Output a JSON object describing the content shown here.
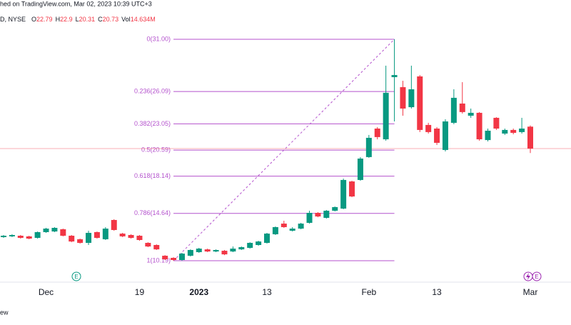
{
  "header": {
    "published": "hed on TradingView.com, Mar 02, 2023 10:39 UTC+3",
    "symbol": "D, NYSE",
    "ohlc": [
      {
        "label": "O",
        "value": 22.79
      },
      {
        "label": "H",
        "value": 22.9
      },
      {
        "label": "L",
        "value": 20.31
      },
      {
        "label": "C",
        "value": 20.73
      }
    ],
    "volume_label": "Vol",
    "volume": "14.634M"
  },
  "footer": "ew",
  "events": [
    "E",
    "E"
  ],
  "chart_data": {
    "type": "candlestick",
    "up_color": "#089981",
    "down_color": "#f23645",
    "ylim": [
      8.18,
      34.69
    ],
    "categories": [
      null,
      null,
      null,
      null,
      null,
      "Dec",
      null,
      null,
      null,
      null,
      null,
      null,
      null,
      null,
      null,
      null,
      "19",
      null,
      null,
      null,
      null,
      null,
      null,
      "2023",
      null,
      null,
      null,
      null,
      null,
      null,
      null,
      "13",
      null,
      null,
      null,
      null,
      null,
      null,
      null,
      null,
      null,
      null,
      null,
      "Feb",
      null,
      null,
      null,
      null,
      null,
      null,
      null,
      "13",
      null,
      null,
      null,
      null,
      null,
      null,
      null,
      null,
      null,
      null,
      "Mar"
    ],
    "open": [
      12.41,
      12.48,
      12.54,
      12.48,
      12.34,
      12.88,
      12.94,
      13.15,
      12.54,
      12.21,
      11.87,
      12.88,
      12.21,
      14.02,
      12.74,
      12.61,
      12.54,
      11.87,
      11.67,
      10.66,
      10.46,
      10.26,
      10.66,
      11.0,
      11.26,
      11.06,
      11.13,
      11.06,
      11.26,
      11.4,
      11.67,
      11.87,
      12.68,
      13.68,
      13.01,
      13.21,
      13.75,
      14.69,
      14.22,
      14.89,
      15.09,
      17.64,
      17.78,
      19.93,
      22.61,
      21.6,
      27.44,
      26.5,
      24.62,
      27.51,
      22.95,
      22.61,
      20.6,
      23.15,
      24.96,
      23.82,
      24.09,
      21.53,
      23.62,
      22.14,
      22.48,
      22.28,
      22.79
    ],
    "high": [
      12.61,
      12.68,
      12.61,
      12.54,
      12.94,
      13.28,
      13.35,
      13.21,
      12.61,
      12.27,
      13.01,
      12.94,
      13.35,
      14.09,
      12.81,
      12.68,
      12.61,
      11.93,
      11.73,
      10.72,
      10.52,
      10.93,
      11.26,
      11.4,
      11.33,
      11.26,
      11.2,
      11.53,
      11.53,
      11.93,
      12.07,
      12.81,
      13.41,
      13.95,
      13.35,
      13.75,
      14.89,
      14.76,
      14.96,
      15.29,
      17.91,
      17.71,
      19.93,
      22.01,
      22.75,
      28.52,
      31.0,
      27.1,
      28.52,
      27.64,
      23.15,
      22.75,
      23.48,
      26.3,
      26.97,
      24.49,
      24.16,
      22.61,
      23.68,
      22.61,
      22.61,
      23.62,
      22.9
    ],
    "low": [
      12.34,
      12.41,
      12.27,
      12.21,
      12.27,
      12.81,
      12.88,
      12.48,
      11.93,
      11.8,
      11.67,
      12.27,
      12.14,
      13.01,
      12.41,
      12.27,
      12.07,
      11.47,
      11.2,
      10.26,
      10.19,
      10.19,
      10.59,
      10.93,
      11.0,
      11.0,
      10.72,
      11.0,
      11.2,
      11.33,
      11.6,
      11.8,
      12.61,
      13.28,
      12.94,
      13.15,
      13.68,
      14.28,
      14.15,
      14.82,
      15.03,
      16.16,
      17.71,
      19.86,
      21.6,
      21.47,
      23.28,
      23.82,
      24.49,
      22.28,
      22.14,
      21.07,
      20.46,
      23.02,
      24.02,
      23.62,
      21.47,
      21.4,
      22.48,
      22.01,
      22.07,
      22.14,
      20.31
    ],
    "close": [
      12.54,
      12.61,
      12.34,
      12.27,
      12.88,
      13.21,
      13.28,
      12.54,
      12.0,
      11.87,
      12.81,
      12.34,
      13.21,
      13.08,
      12.48,
      12.34,
      12.14,
      11.53,
      11.26,
      10.33,
      10.26,
      10.86,
      11.2,
      11.33,
      11.06,
      11.2,
      10.79,
      11.33,
      11.47,
      11.87,
      12.0,
      12.74,
      13.35,
      13.35,
      13.21,
      13.68,
      14.69,
      14.35,
      14.89,
      15.23,
      17.78,
      16.23,
      19.79,
      21.74,
      21.81,
      25.97,
      27.64,
      24.49,
      26.3,
      22.48,
      22.28,
      21.27,
      23.28,
      25.5,
      24.16,
      24.09,
      21.6,
      22.41,
      22.61,
      22.48,
      22.21,
      22.61,
      20.73
    ],
    "fib_color": "#b452cd",
    "fib_levels": [
      {
        "value": 31.0,
        "label": "0(31.00)"
      },
      {
        "value": 26.09,
        "label": "0.236(26.09)"
      },
      {
        "value": 23.05,
        "label": "0.382(23.05)"
      },
      {
        "value": 20.59,
        "label": "0.5(20.59)"
      },
      {
        "value": 18.14,
        "label": "0.618(18.14)"
      },
      {
        "value": 14.64,
        "label": "0.786(14.64)"
      },
      {
        "value": 10.19,
        "label": "1(10.19)"
      }
    ]
  }
}
